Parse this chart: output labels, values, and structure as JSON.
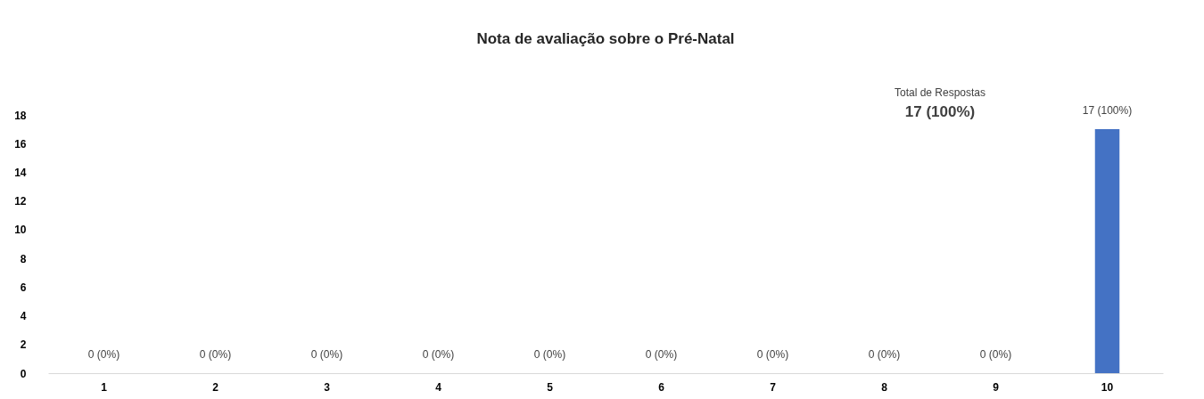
{
  "chart_data": {
    "type": "bar",
    "title": "Nota de avaliação sobre o Pré-Natal",
    "categories": [
      "1",
      "2",
      "3",
      "4",
      "5",
      "6",
      "7",
      "8",
      "9",
      "10"
    ],
    "values": [
      0,
      0,
      0,
      0,
      0,
      0,
      0,
      0,
      0,
      17
    ],
    "value_labels": [
      "0 (0%)",
      "0 (0%)",
      "0 (0%)",
      "0 (0%)",
      "0 (0%)",
      "0 (0%)",
      "0 (0%)",
      "0 (0%)",
      "0 (0%)",
      "17 (100%)"
    ],
    "color": "#4472c4",
    "ylim": [
      0,
      18
    ],
    "yticks": [
      0,
      2,
      4,
      6,
      8,
      10,
      12,
      14,
      16,
      18
    ],
    "grid": false,
    "annotations": [
      "Total de Respostas",
      "17 (100%)"
    ]
  }
}
